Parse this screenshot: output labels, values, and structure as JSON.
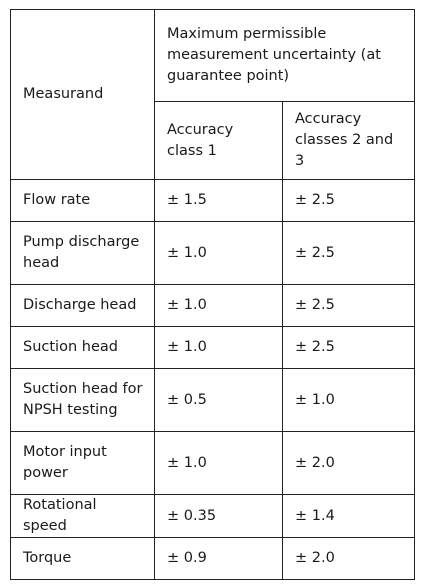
{
  "table": {
    "header": {
      "measurand": "Measurand",
      "uncertainty": "Maximum permissible measurement uncertainty (at guarantee point)",
      "class1": "Accuracy class 1",
      "class23": "Accuracy classes 2 and 3"
    },
    "rows": [
      {
        "measurand": "Flow rate",
        "class1": "± 1.5",
        "class23": "± 2.5"
      },
      {
        "measurand": "Pump discharge head",
        "class1": "± 1.0",
        "class23": "± 2.5"
      },
      {
        "measurand": "Discharge head",
        "class1": "± 1.0",
        "class23": "± 2.5"
      },
      {
        "measurand": "Suction head",
        "class1": "± 1.0",
        "class23": "± 2.5"
      },
      {
        "measurand": "Suction head for NPSH testing",
        "class1": "± 0.5",
        "class23": "± 1.0"
      },
      {
        "measurand": "Motor input power",
        "class1": "± 1.0",
        "class23": "± 2.0"
      },
      {
        "measurand": "Rotational speed",
        "class1": "± 0.35",
        "class23": "± 1.4"
      },
      {
        "measurand": "Torque",
        "class1": "± 0.9",
        "class23": "± 2.0"
      }
    ]
  }
}
